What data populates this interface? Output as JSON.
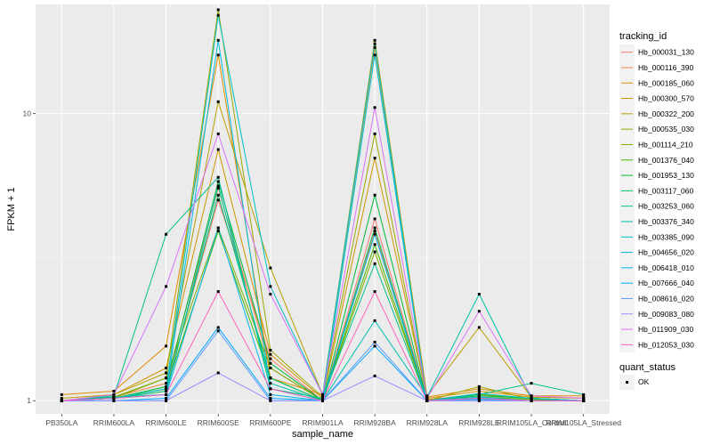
{
  "chart_data": {
    "type": "line",
    "xlabel": "sample_name",
    "ylabel": "FPKM + 1",
    "y_scale": "log10",
    "ylim": [
      0.9,
      24
    ],
    "y_ticks": [
      1,
      10
    ],
    "categories": [
      "PB350LA",
      "RRIM600LA",
      "RRIM600LE",
      "RRIM600SE",
      "RRIM600PE",
      "RRIM901LA",
      "RRIM928BA",
      "RRIM928LA",
      "RRIM928LE",
      "RRIM105LA_Control",
      "RRIM105LA_Stressed"
    ],
    "grid": true,
    "background": "#ebebeb",
    "legend": {
      "placement": "right",
      "title": "tracking_id",
      "status_title": "quant_status",
      "status_label": "OK"
    },
    "series": [
      {
        "name": "Hb_000031_130",
        "color": "#F8766D",
        "values": [
          1.0,
          1.02,
          1.1,
          5.0,
          1.4,
          1.0,
          4.3,
          1.0,
          1.02,
          1.0,
          1.0
        ]
      },
      {
        "name": "Hb_000116_390",
        "color": "#EE8043",
        "values": [
          1.0,
          1.03,
          1.15,
          5.5,
          1.3,
          1.0,
          3.9,
          1.01,
          1.05,
          1.02,
          1.0
        ]
      },
      {
        "name": "Hb_000185_060",
        "color": "#E08B00",
        "values": [
          1.05,
          1.08,
          1.55,
          16.0,
          1.2,
          1.05,
          17.0,
          1.03,
          1.1,
          1.04,
          1.04
        ]
      },
      {
        "name": "Hb_000300_570",
        "color": "#CF9400",
        "values": [
          1.0,
          1.05,
          1.3,
          7.5,
          1.45,
          1.02,
          7.0,
          1.02,
          1.08,
          1.03,
          1.02
        ]
      },
      {
        "name": "Hb_000322_200",
        "color": "#B79F00",
        "values": [
          1.02,
          1.05,
          1.25,
          11.0,
          2.9,
          1.05,
          18.0,
          1.04,
          1.8,
          1.03,
          1.02
        ]
      },
      {
        "name": "Hb_000535_030",
        "color": "#9DA700",
        "values": [
          1.0,
          1.02,
          1.2,
          23.0,
          1.5,
          1.03,
          8.5,
          1.0,
          1.12,
          1.01,
          1.0
        ]
      },
      {
        "name": "Hb_001114_210",
        "color": "#7CAE00",
        "values": [
          1.0,
          1.03,
          1.2,
          4.0,
          1.3,
          1.0,
          3.3,
          1.0,
          1.05,
          1.02,
          1.0
        ]
      },
      {
        "name": "Hb_001376_040",
        "color": "#49B500",
        "values": [
          1.0,
          1.02,
          1.1,
          3.9,
          1.2,
          1.0,
          3.5,
          1.0,
          1.03,
          1.01,
          1.0
        ]
      },
      {
        "name": "Hb_001953_130",
        "color": "#00BA38",
        "values": [
          1.0,
          1.02,
          1.12,
          5.8,
          1.35,
          1.0,
          5.2,
          1.0,
          1.04,
          1.02,
          1.0
        ]
      },
      {
        "name": "Hb_003117_060",
        "color": "#00BE67",
        "values": [
          1.0,
          1.02,
          1.08,
          5.2,
          1.2,
          1.0,
          4.0,
          1.0,
          1.02,
          1.0,
          1.0
        ]
      },
      {
        "name": "Hb_003253_060",
        "color": "#00C08B",
        "values": [
          1.0,
          1.04,
          3.8,
          6.0,
          1.1,
          1.02,
          3.0,
          1.0,
          1.05,
          1.15,
          1.05
        ]
      },
      {
        "name": "Hb_003376_340",
        "color": "#00C1AA",
        "values": [
          1.0,
          1.03,
          1.05,
          5.6,
          1.15,
          1.0,
          1.9,
          1.03,
          2.35,
          1.02,
          1.0
        ]
      },
      {
        "name": "Hb_003385_090",
        "color": "#00BFC4",
        "values": [
          1.0,
          1.02,
          1.1,
          22.0,
          2.5,
          1.05,
          17.5,
          1.0,
          1.06,
          1.02,
          1.0
        ]
      },
      {
        "name": "Hb_004656_020",
        "color": "#00BBDA",
        "values": [
          1.0,
          1.02,
          1.05,
          18.0,
          1.1,
          1.0,
          16.0,
          1.0,
          1.03,
          1.0,
          1.0
        ]
      },
      {
        "name": "Hb_006418_010",
        "color": "#00B4EF",
        "values": [
          1.0,
          1.02,
          1.05,
          4.0,
          1.05,
          1.0,
          3.8,
          1.0,
          1.02,
          1.0,
          1.0
        ]
      },
      {
        "name": "Hb_007666_040",
        "color": "#00A9FF",
        "values": [
          1.0,
          1.0,
          1.02,
          1.8,
          1.02,
          1.0,
          1.55,
          1.0,
          1.01,
          1.0,
          1.0
        ]
      },
      {
        "name": "Hb_008616_020",
        "color": "#619CFF",
        "values": [
          1.0,
          1.0,
          1.0,
          1.75,
          1.0,
          1.0,
          1.6,
          1.0,
          1.0,
          1.0,
          1.0
        ]
      },
      {
        "name": "Hb_009083_080",
        "color": "#9590FF",
        "values": [
          1.0,
          1.0,
          1.0,
          1.25,
          1.0,
          1.0,
          1.22,
          1.0,
          1.0,
          1.0,
          1.0
        ]
      },
      {
        "name": "Hb_011909_030",
        "color": "#DB72FB",
        "values": [
          1.0,
          1.05,
          2.5,
          8.5,
          2.35,
          1.05,
          10.5,
          1.02,
          2.05,
          1.04,
          1.02
        ]
      },
      {
        "name": "Hb_012053_030",
        "color": "#FF62BC",
        "values": [
          1.0,
          1.02,
          1.05,
          2.4,
          1.1,
          1.0,
          2.4,
          1.0,
          1.02,
          1.0,
          1.0
        ]
      }
    ]
  }
}
